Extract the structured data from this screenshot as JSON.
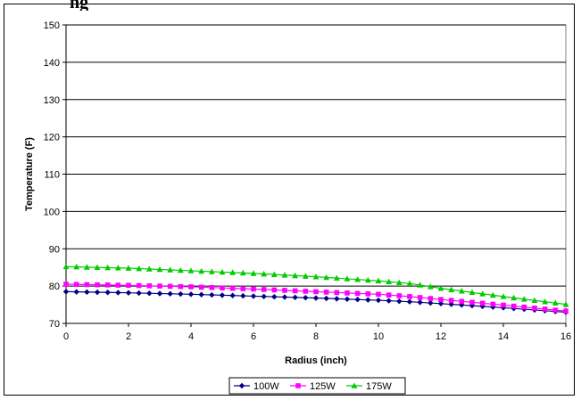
{
  "header": {
    "partial_text": "ng"
  },
  "chart_data": {
    "type": "line",
    "xlabel": "Radius (inch)",
    "ylabel": "Temperature (F)",
    "xlim": [
      0,
      16
    ],
    "ylim": [
      70,
      150
    ],
    "x_ticks": [
      0,
      2,
      4,
      6,
      8,
      10,
      12,
      14,
      16
    ],
    "y_ticks": [
      70,
      80,
      90,
      100,
      110,
      120,
      130,
      140,
      150
    ],
    "grid": "horizontal",
    "legend_position": "bottom",
    "x": [
      0,
      2,
      4,
      6,
      8,
      10,
      11,
      12,
      14,
      16
    ],
    "series": [
      {
        "name": "100W",
        "color": "#000080",
        "marker": "diamond",
        "values": [
          78.5,
          78.2,
          77.8,
          77.3,
          76.8,
          76.2,
          75.8,
          75.3,
          74.2,
          73.0
        ]
      },
      {
        "name": "125W",
        "color": "#ff00ff",
        "marker": "square",
        "values": [
          80.5,
          80.2,
          79.8,
          79.2,
          78.5,
          77.8,
          77.2,
          76.4,
          74.9,
          73.3
        ]
      },
      {
        "name": "175W",
        "color": "#00cc00",
        "marker": "triangle",
        "values": [
          85.2,
          84.8,
          84.1,
          83.4,
          82.5,
          81.4,
          80.7,
          79.4,
          77.2,
          75.1
        ]
      }
    ]
  }
}
